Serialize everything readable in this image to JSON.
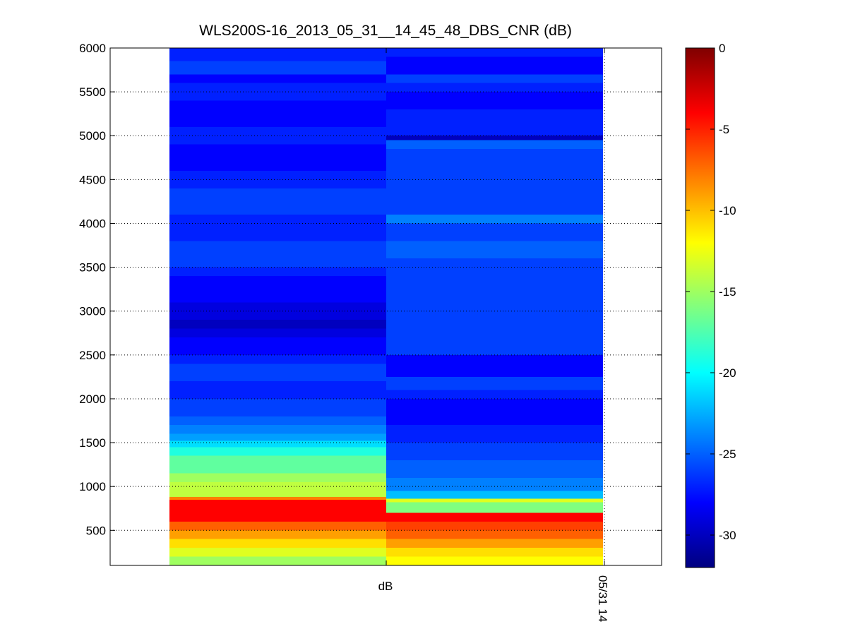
{
  "chart_data": {
    "type": "heatmap",
    "title": "WLS200S-16_2013_05_31__14_45_48_DBS_CNR (dB)",
    "xlabel": "dB",
    "x_tick_labels": [
      "dB",
      "05/31 14"
    ],
    "ylim": [
      100,
      6000
    ],
    "yticks": [
      500,
      1000,
      1500,
      2000,
      2500,
      3000,
      3500,
      4000,
      4500,
      5000,
      5500,
      6000
    ],
    "grid": true,
    "colormap": "jet",
    "colorbar": {
      "clim": [
        -32,
        0
      ],
      "ticks": [
        0,
        -5,
        -10,
        -15,
        -20,
        -25,
        -30
      ]
    },
    "columns": [
      {
        "segments": [
          {
            "y0": 100,
            "y1": 200,
            "value": -15
          },
          {
            "y0": 200,
            "y1": 300,
            "value": -13
          },
          {
            "y0": 300,
            "y1": 400,
            "value": -11
          },
          {
            "y0": 400,
            "y1": 500,
            "value": -9
          },
          {
            "y0": 500,
            "y1": 600,
            "value": -7
          },
          {
            "y0": 600,
            "y1": 850,
            "value": -4
          },
          {
            "y0": 850,
            "y1": 880,
            "value": -8
          },
          {
            "y0": 880,
            "y1": 1050,
            "value": -14
          },
          {
            "y0": 1050,
            "y1": 1150,
            "value": -15
          },
          {
            "y0": 1150,
            "y1": 1350,
            "value": -17
          },
          {
            "y0": 1350,
            "y1": 1450,
            "value": -19
          },
          {
            "y0": 1450,
            "y1": 1520,
            "value": -21
          },
          {
            "y0": 1520,
            "y1": 1600,
            "value": -23
          },
          {
            "y0": 1600,
            "y1": 1700,
            "value": -24
          },
          {
            "y0": 1700,
            "y1": 1800,
            "value": -25
          },
          {
            "y0": 1800,
            "y1": 2000,
            "value": -26
          },
          {
            "y0": 2000,
            "y1": 2200,
            "value": -27
          },
          {
            "y0": 2200,
            "y1": 2400,
            "value": -26
          },
          {
            "y0": 2400,
            "y1": 2500,
            "value": -27
          },
          {
            "y0": 2500,
            "y1": 2700,
            "value": -28
          },
          {
            "y0": 2700,
            "y1": 2800,
            "value": -29
          },
          {
            "y0": 2800,
            "y1": 2900,
            "value": -30
          },
          {
            "y0": 2900,
            "y1": 3100,
            "value": -29
          },
          {
            "y0": 3100,
            "y1": 3400,
            "value": -28
          },
          {
            "y0": 3400,
            "y1": 3500,
            "value": -27
          },
          {
            "y0": 3500,
            "y1": 3800,
            "value": -26
          },
          {
            "y0": 3800,
            "y1": 4100,
            "value": -27
          },
          {
            "y0": 4100,
            "y1": 4400,
            "value": -26
          },
          {
            "y0": 4400,
            "y1": 4600,
            "value": -27
          },
          {
            "y0": 4600,
            "y1": 4900,
            "value": -28
          },
          {
            "y0": 4900,
            "y1": 5100,
            "value": -27
          },
          {
            "y0": 5100,
            "y1": 5400,
            "value": -28
          },
          {
            "y0": 5400,
            "y1": 5600,
            "value": -27
          },
          {
            "y0": 5600,
            "y1": 5700,
            "value": -28
          },
          {
            "y0": 5700,
            "y1": 5850,
            "value": -26
          },
          {
            "y0": 5850,
            "y1": 6000,
            "value": -27
          }
        ]
      },
      {
        "segments": [
          {
            "y0": 100,
            "y1": 200,
            "value": -12
          },
          {
            "y0": 200,
            "y1": 300,
            "value": -11
          },
          {
            "y0": 300,
            "y1": 400,
            "value": -9
          },
          {
            "y0": 400,
            "y1": 500,
            "value": -7
          },
          {
            "y0": 500,
            "y1": 600,
            "value": -6
          },
          {
            "y0": 600,
            "y1": 700,
            "value": -4
          },
          {
            "y0": 700,
            "y1": 820,
            "value": -16
          },
          {
            "y0": 820,
            "y1": 860,
            "value": -13
          },
          {
            "y0": 860,
            "y1": 950,
            "value": -22
          },
          {
            "y0": 950,
            "y1": 1100,
            "value": -24
          },
          {
            "y0": 1100,
            "y1": 1300,
            "value": -25
          },
          {
            "y0": 1300,
            "y1": 1500,
            "value": -26
          },
          {
            "y0": 1500,
            "y1": 1700,
            "value": -27
          },
          {
            "y0": 1700,
            "y1": 2000,
            "value": -28
          },
          {
            "y0": 2000,
            "y1": 2100,
            "value": -27
          },
          {
            "y0": 2100,
            "y1": 2250,
            "value": -26
          },
          {
            "y0": 2250,
            "y1": 2500,
            "value": -28
          },
          {
            "y0": 2500,
            "y1": 2800,
            "value": -26
          },
          {
            "y0": 2800,
            "y1": 3200,
            "value": -26
          },
          {
            "y0": 3200,
            "y1": 3600,
            "value": -26
          },
          {
            "y0": 3600,
            "y1": 3800,
            "value": -25
          },
          {
            "y0": 3800,
            "y1": 4000,
            "value": -26
          },
          {
            "y0": 4000,
            "y1": 4100,
            "value": -24
          },
          {
            "y0": 4100,
            "y1": 4400,
            "value": -26
          },
          {
            "y0": 4400,
            "y1": 4600,
            "value": -26
          },
          {
            "y0": 4600,
            "y1": 4850,
            "value": -26
          },
          {
            "y0": 4850,
            "y1": 4950,
            "value": -25
          },
          {
            "y0": 4950,
            "y1": 5000,
            "value": -30
          },
          {
            "y0": 5000,
            "y1": 5300,
            "value": -27
          },
          {
            "y0": 5300,
            "y1": 5500,
            "value": -28
          },
          {
            "y0": 5500,
            "y1": 5600,
            "value": -27
          },
          {
            "y0": 5600,
            "y1": 5700,
            "value": -26
          },
          {
            "y0": 5700,
            "y1": 5900,
            "value": -28
          },
          {
            "y0": 5900,
            "y1": 6000,
            "value": -27
          }
        ]
      }
    ]
  }
}
